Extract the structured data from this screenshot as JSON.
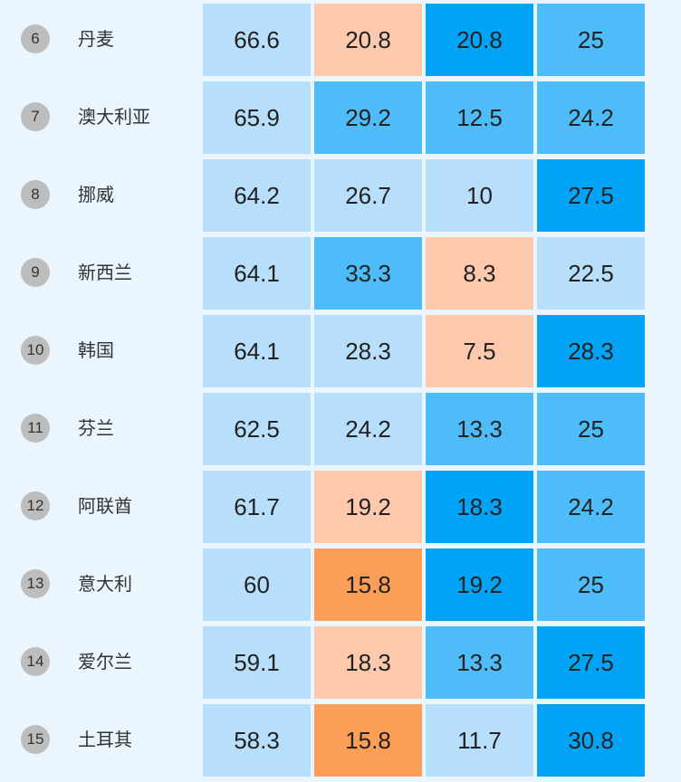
{
  "colors": {
    "background": "#eaf5fd",
    "level_scale": {
      "1": "#b7defb",
      "2": "#4dbcf8",
      "3": "#00a3f5",
      "4": "#fdc9ad",
      "5": "#fc9e58"
    }
  },
  "chart_data": {
    "type": "table",
    "rows": [
      {
        "rank": "6",
        "country": "丹麦",
        "values": [
          "66.6",
          "20.8",
          "20.8",
          "25"
        ],
        "levels": [
          1,
          4,
          3,
          2
        ]
      },
      {
        "rank": "7",
        "country": "澳大利亚",
        "values": [
          "65.9",
          "29.2",
          "12.5",
          "24.2"
        ],
        "levels": [
          1,
          2,
          2,
          2
        ]
      },
      {
        "rank": "8",
        "country": "挪威",
        "values": [
          "64.2",
          "26.7",
          "10",
          "27.5"
        ],
        "levels": [
          1,
          1,
          1,
          3
        ]
      },
      {
        "rank": "9",
        "country": "新西兰",
        "values": [
          "64.1",
          "33.3",
          "8.3",
          "22.5"
        ],
        "levels": [
          1,
          2,
          4,
          1
        ]
      },
      {
        "rank": "10",
        "country": "韩国",
        "values": [
          "64.1",
          "28.3",
          "7.5",
          "28.3"
        ],
        "levels": [
          1,
          1,
          4,
          3
        ]
      },
      {
        "rank": "11",
        "country": "芬兰",
        "values": [
          "62.5",
          "24.2",
          "13.3",
          "25"
        ],
        "levels": [
          1,
          1,
          2,
          2
        ]
      },
      {
        "rank": "12",
        "country": "阿联酋",
        "values": [
          "61.7",
          "19.2",
          "18.3",
          "24.2"
        ],
        "levels": [
          1,
          4,
          3,
          2
        ]
      },
      {
        "rank": "13",
        "country": "意大利",
        "values": [
          "60",
          "15.8",
          "19.2",
          "25"
        ],
        "levels": [
          1,
          5,
          3,
          2
        ]
      },
      {
        "rank": "14",
        "country": "爱尔兰",
        "values": [
          "59.1",
          "18.3",
          "13.3",
          "27.5"
        ],
        "levels": [
          1,
          4,
          2,
          3
        ]
      },
      {
        "rank": "15",
        "country": "土耳其",
        "values": [
          "58.3",
          "15.8",
          "11.7",
          "30.8"
        ],
        "levels": [
          1,
          5,
          1,
          3
        ]
      }
    ]
  }
}
